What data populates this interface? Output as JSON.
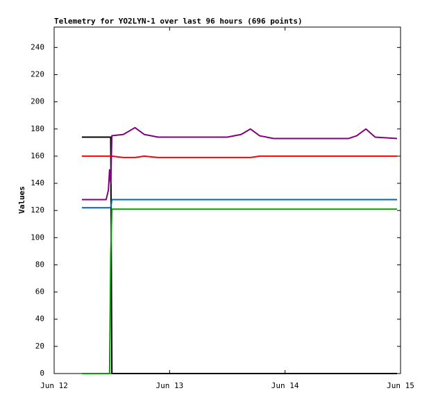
{
  "chart_data": {
    "type": "line",
    "title": "Telemetry for YO2LYN-1 over last 96 hours (696 points)",
    "y_label": "Values",
    "x": [
      0.24,
      0.45,
      0.47,
      0.48,
      0.49,
      0.5,
      0.6,
      0.7,
      0.78,
      0.9,
      1.2,
      1.5,
      1.62,
      1.7,
      1.78,
      1.9,
      2.3,
      2.55,
      2.62,
      2.7,
      2.78,
      2.97
    ],
    "series": [
      {
        "color": "#000000",
        "values": [
          174,
          174,
          174,
          174,
          174,
          0,
          0,
          0,
          0,
          0,
          0,
          0,
          0,
          0,
          0,
          0,
          0,
          0,
          0,
          0,
          0,
          0
        ]
      },
      {
        "color": "#ff0000",
        "values": [
          160,
          160,
          160,
          160,
          160,
          160,
          159,
          159,
          160,
          159,
          159,
          159,
          159,
          159,
          160,
          160,
          160,
          160,
          160,
          160,
          160,
          160
        ]
      },
      {
        "color": "#0066b3",
        "values": [
          122,
          122,
          122,
          122,
          122,
          128,
          128,
          128,
          128,
          128,
          128,
          128,
          128,
          128,
          128,
          128,
          128,
          128,
          128,
          128,
          128,
          128
        ]
      },
      {
        "color": "#00a000",
        "values": [
          0,
          0,
          0,
          0,
          88,
          121,
          121,
          121,
          121,
          121,
          121,
          121,
          121,
          121,
          121,
          121,
          121,
          121,
          121,
          121,
          121,
          121
        ]
      },
      {
        "color": "#800080",
        "values": [
          128,
          128,
          135,
          150,
          140,
          175,
          176,
          181,
          176,
          174,
          174,
          174,
          176,
          180,
          175,
          173,
          173,
          173,
          175,
          180,
          174,
          173
        ]
      }
    ],
    "xlim": [
      0,
      3
    ],
    "xticks": [
      {
        "value": 0,
        "label": "Jun 12"
      },
      {
        "value": 1,
        "label": "Jun 13"
      },
      {
        "value": 2,
        "label": "Jun 14"
      },
      {
        "value": 3,
        "label": "Jun 15"
      }
    ],
    "ylim": [
      0,
      255
    ],
    "yticks": [
      0,
      20,
      40,
      60,
      80,
      100,
      120,
      140,
      160,
      180,
      200,
      220,
      240
    ]
  }
}
